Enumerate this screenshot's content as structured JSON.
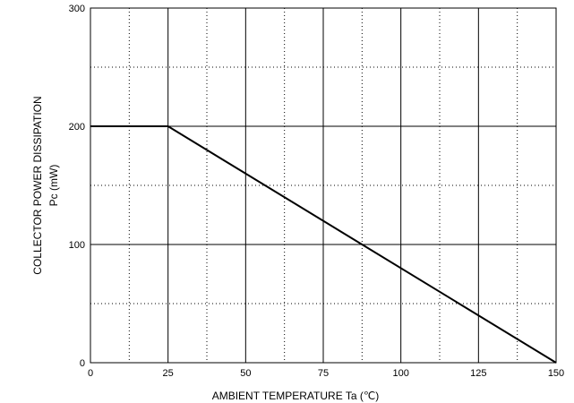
{
  "chart_data": {
    "type": "line",
    "x_label": "AMBIENT TEMPERATURE   Ta   (℃)",
    "y_label": [
      "COLLECTOR POWER DISSIPATION",
      "Pc    (mW)"
    ],
    "x": [
      0,
      25,
      150
    ],
    "series": [
      {
        "color": "#000000",
        "values": [
          200,
          200,
          0
        ]
      }
    ],
    "xlim": [
      0,
      150
    ],
    "xticks": [
      0,
      25,
      50,
      75,
      100,
      125,
      150
    ],
    "xminorticks": [
      12.5,
      37.5,
      62.5,
      87.5,
      112.5,
      137.5
    ],
    "ylim": [
      0,
      300
    ],
    "yticks": [
      0,
      100,
      200,
      300
    ],
    "yminorticks": [
      50,
      150,
      250
    ],
    "grid": true
  }
}
